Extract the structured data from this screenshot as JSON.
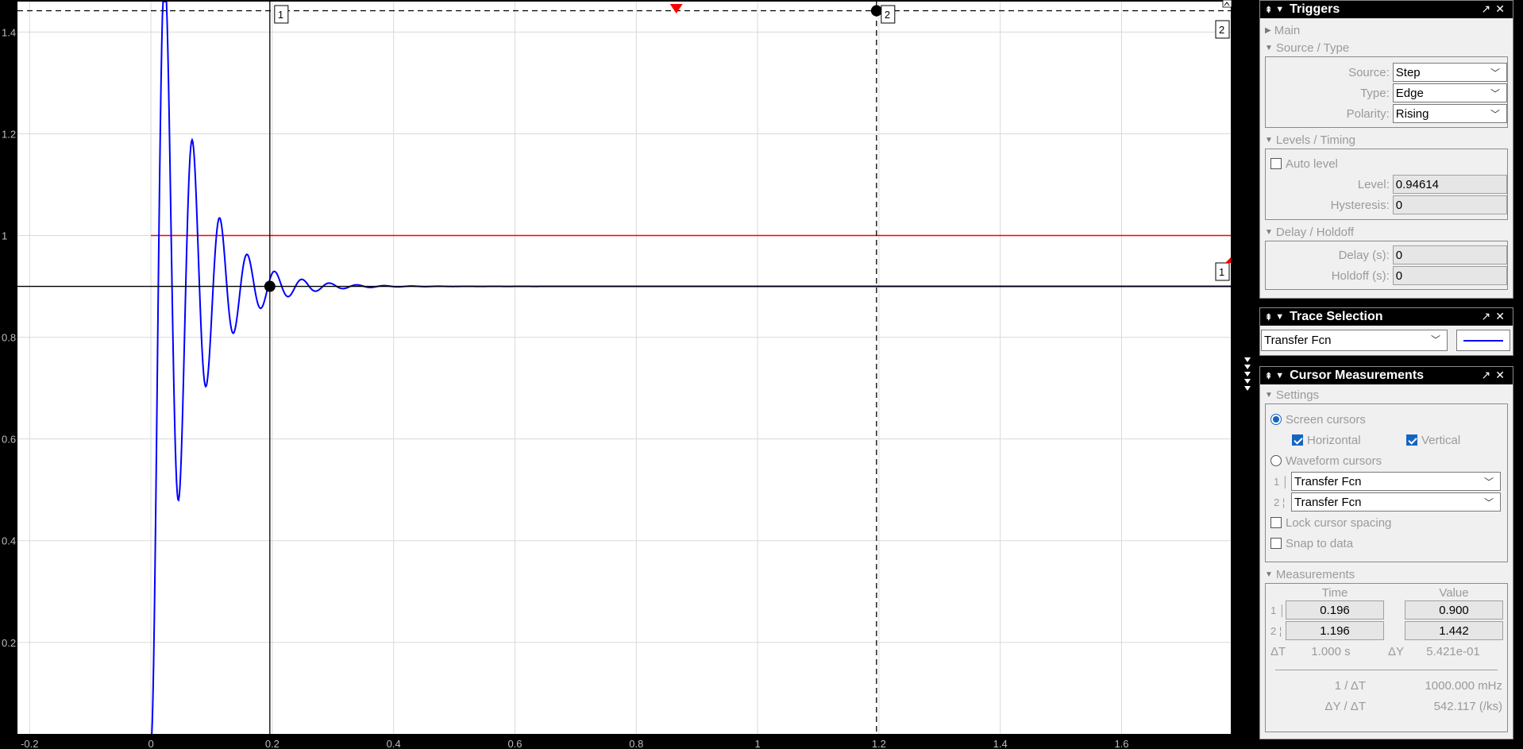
{
  "plot": {
    "x_ticks": [
      "-0.2",
      "0",
      "0.2",
      "0.4",
      "0.6",
      "0.8",
      "1",
      "1.2",
      "1.4",
      "1.6"
    ],
    "x_tick_values": [
      -0.2,
      0,
      0.2,
      0.4,
      0.6,
      0.8,
      1,
      1.2,
      1.4,
      1.6
    ],
    "y_ticks": [
      "0.2",
      "0.4",
      "0.6",
      "0.8",
      "1",
      "1.2",
      "1.4"
    ],
    "y_tick_values": [
      0.2,
      0.4,
      0.6,
      0.8,
      1,
      1.2,
      1.4
    ],
    "x_range": [
      -0.22,
      1.78
    ],
    "y_range": [
      0.02,
      1.46
    ],
    "colors": {
      "trace": "#0000ff",
      "step": "#ff0000",
      "cursor": "#000000",
      "trigger": "#ff0000"
    },
    "step_level": 1,
    "step_start": 0,
    "cursor1": {
      "label": "1",
      "time": 0.196,
      "value": 0.9
    },
    "cursor2": {
      "label": "2",
      "time": 1.196,
      "value": 1.442
    },
    "trigger_time": 0.866,
    "right_marker_1": "1",
    "right_marker_2": "2",
    "response": {
      "final_value": 0.9,
      "zeta": 0.12,
      "wn": 140,
      "delay": 0
    }
  },
  "triggers": {
    "title": "Triggers",
    "main_label": "Main",
    "source_type_label": "Source / Type",
    "source_label": "Source:",
    "source_value": "Step",
    "type_label": "Type:",
    "type_value": "Edge",
    "polarity_label": "Polarity:",
    "polarity_value": "Rising",
    "levels_timing_label": "Levels / Timing",
    "auto_level_label": "Auto level",
    "level_label": "Level:",
    "level_value": "0.94614",
    "hysteresis_label": "Hysteresis:",
    "hysteresis_value": "0",
    "delay_holdoff_label": "Delay / Holdoff",
    "delay_label": "Delay (s):",
    "delay_value": "0",
    "holdoff_label": "Holdoff (s):",
    "holdoff_value": "0"
  },
  "trace_selection": {
    "title": "Trace Selection",
    "value": "Transfer Fcn",
    "swatch_color": "#0000ff"
  },
  "cursor_measurements": {
    "title": "Cursor Measurements",
    "settings_label": "Settings",
    "screen_cursors_label": "Screen cursors",
    "horizontal_label": "Horizontal",
    "vertical_label": "Vertical",
    "waveform_cursors_label": "Waveform cursors",
    "cursor1_index": "1",
    "cursor2_index": "2",
    "cursor1_trace": "Transfer Fcn",
    "cursor2_trace": "Transfer Fcn",
    "lock_spacing_label": "Lock cursor spacing",
    "snap_label": "Snap to data",
    "measurements_label": "Measurements",
    "time_header": "Time",
    "value_header": "Value",
    "t1": "0.196",
    "v1": "0.900",
    "t2": "1.196",
    "v2": "1.442",
    "dt_label": "ΔT",
    "dt_value": "1.000 s",
    "dy_label": "ΔY",
    "dy_value": "5.421e-01",
    "inv_dt_label": "1 / ΔT",
    "inv_dt_value": "1000.000 mHz",
    "dydt_label": "ΔY / ΔT",
    "dydt_value": "542.117 (/ks)"
  }
}
